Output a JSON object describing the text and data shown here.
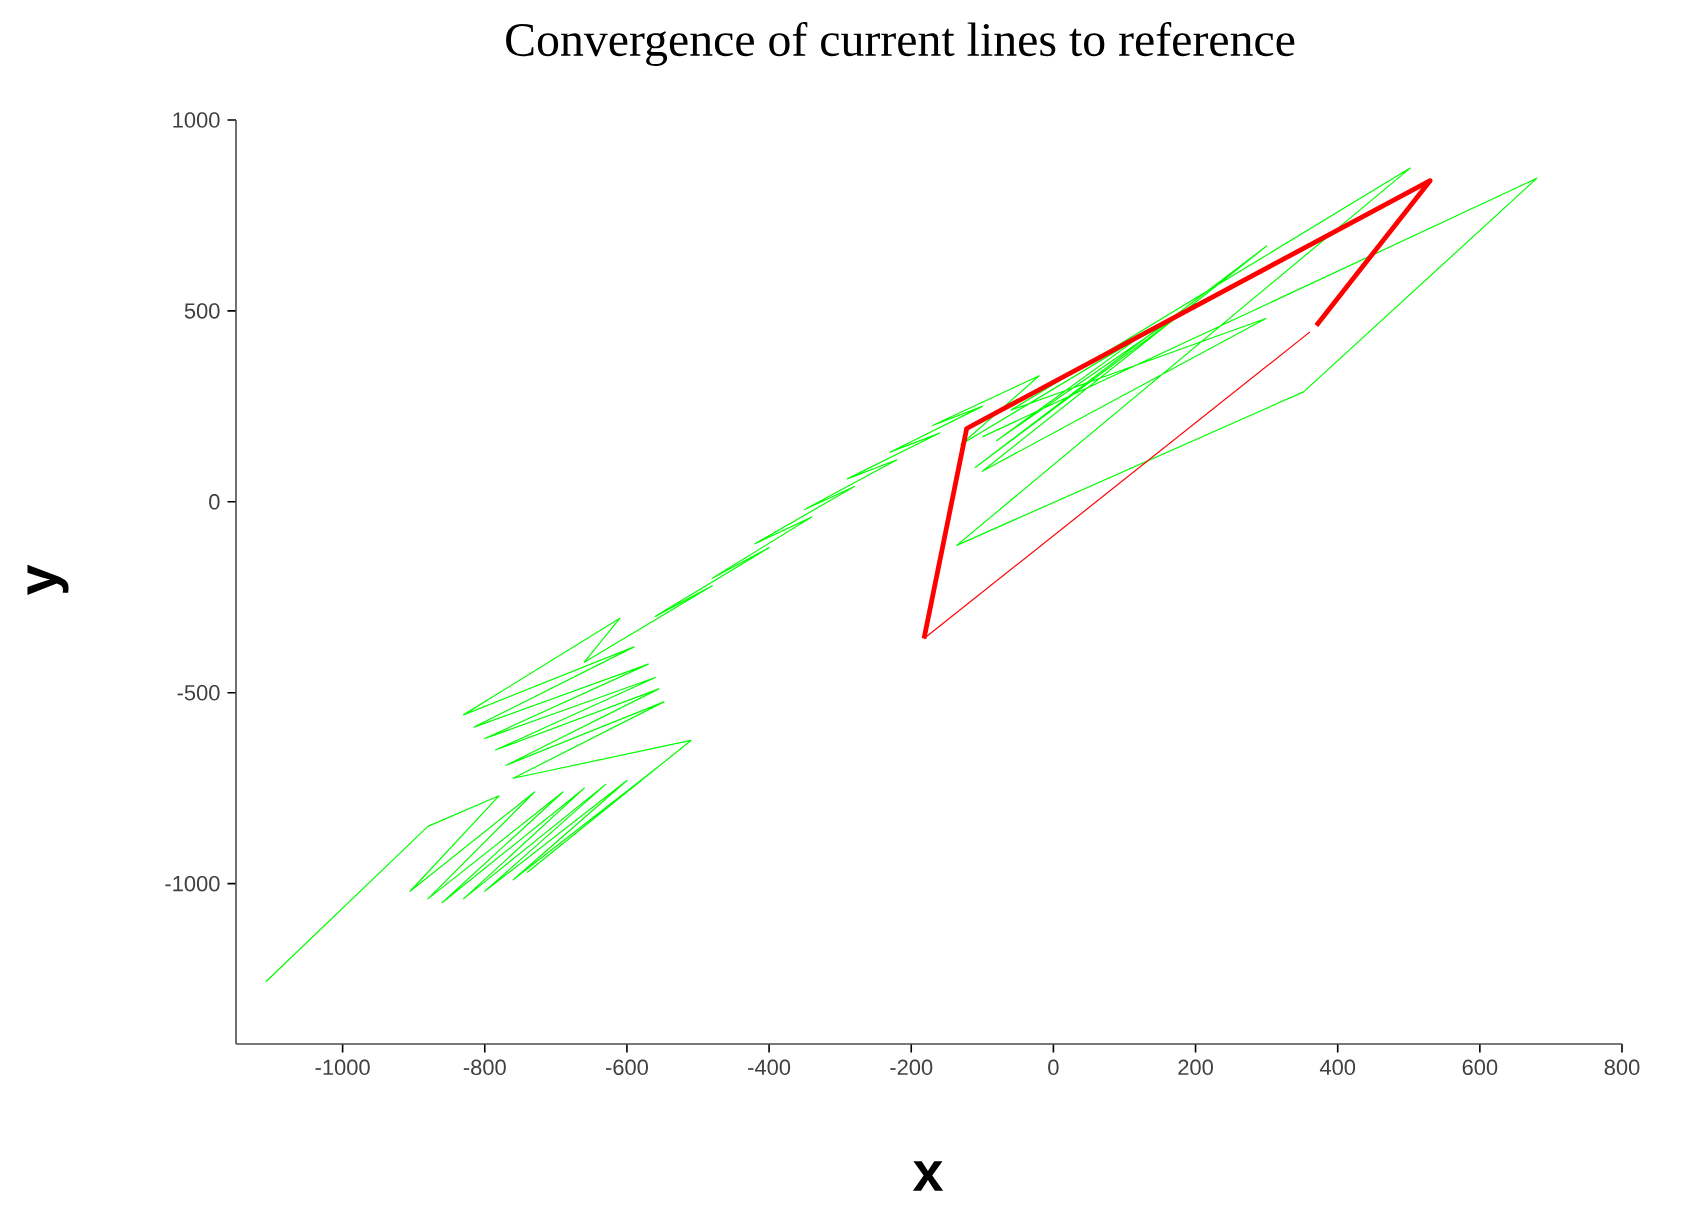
{
  "chart_data": {
    "type": "line",
    "title": "Convergence of current lines to reference",
    "xlabel": "x",
    "ylabel": "y",
    "xlim": [
      -1150,
      800
    ],
    "ylim": [
      -1420,
      1000
    ],
    "xticks": [
      -1000,
      -800,
      -600,
      -400,
      -200,
      0,
      200,
      400,
      600,
      800
    ],
    "yticks": [
      -1000,
      -500,
      0,
      500,
      1000
    ],
    "series": [
      {
        "color": "#00ff00",
        "x": [
          -1108,
          -880,
          -780,
          -905,
          -730,
          -880,
          -690,
          -860,
          -660,
          -830,
          -630,
          -800,
          -600,
          -760,
          -560,
          -740,
          -510,
          -760,
          -548,
          -770,
          -555,
          -785,
          -560,
          -800,
          -570,
          -815,
          -590,
          -830,
          -610,
          -660,
          -480,
          -560,
          -400,
          -480,
          -340,
          -420,
          -280,
          -350,
          -220,
          -290,
          -160,
          -230,
          -100,
          -170,
          -20,
          -130,
          120,
          -80,
          200,
          -110,
          300,
          -100,
          299,
          -60,
          502,
          -136,
          352,
          680,
          -100
        ],
        "values": [
          -1257,
          -850,
          -770,
          -1020,
          -760,
          -1040,
          -760,
          -1050,
          -750,
          -1040,
          -740,
          -1020,
          -730,
          -990,
          -700,
          -970,
          -625,
          -724,
          -524,
          -690,
          -490,
          -650,
          -460,
          -620,
          -425,
          -590,
          -380,
          -558,
          -305,
          -420,
          -220,
          -300,
          -120,
          -200,
          -40,
          -110,
          40,
          -20,
          110,
          60,
          180,
          130,
          250,
          200,
          330,
          150,
          430,
          160,
          520,
          90,
          670,
          80,
          480,
          240,
          874,
          -114,
          288,
          847,
          170
        ]
      },
      {
        "color": "#ff0000",
        "x": [
          361,
          -182
        ],
        "values": [
          445,
          -358
        ]
      },
      {
        "color": "#ff0000",
        "x": [
          -182,
          -122,
          530,
          370
        ],
        "values": [
          -358,
          192,
          841,
          462
        ]
      }
    ]
  }
}
